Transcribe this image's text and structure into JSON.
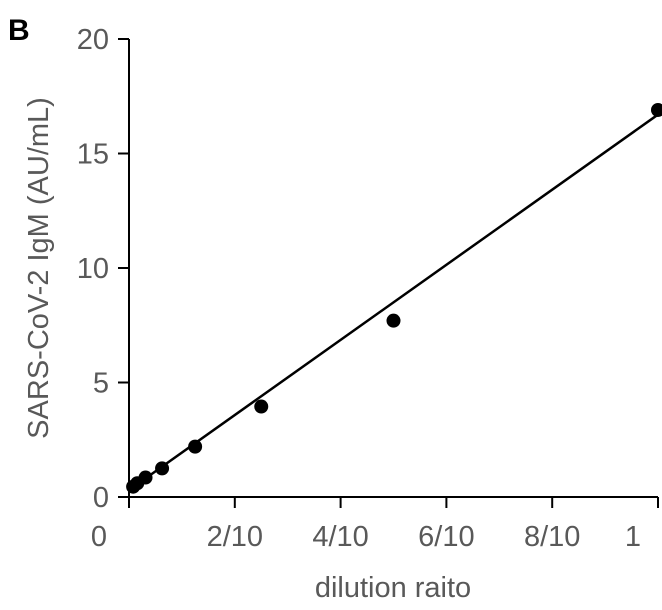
{
  "chart_data": {
    "type": "scatter",
    "panel_label": "B",
    "xlabel": "dilution raito",
    "ylabel": "SARS-CoV-2 IgM (AU/mL)",
    "x": [
      0.0078125,
      0.015625,
      0.03125,
      0.0625,
      0.125,
      0.25,
      0.5,
      1
    ],
    "values": [
      0.45,
      0.6,
      0.85,
      1.25,
      2.2,
      3.95,
      7.7,
      16.9
    ],
    "color": "#000000",
    "trendline": {
      "x": [
        0,
        1
      ],
      "y": [
        0.3,
        16.7
      ]
    },
    "xlim": [
      0,
      1
    ],
    "xticks": [
      0,
      {
        "value": 0.2,
        "label": "2/10"
      },
      {
        "value": 0.4,
        "label": "4/10"
      },
      {
        "value": 0.6,
        "label": "6/10"
      },
      {
        "value": 0.8,
        "label": "8/10"
      },
      1
    ],
    "ylim": [
      0,
      20
    ],
    "yticks": [
      0,
      5,
      10,
      15,
      20
    ]
  }
}
